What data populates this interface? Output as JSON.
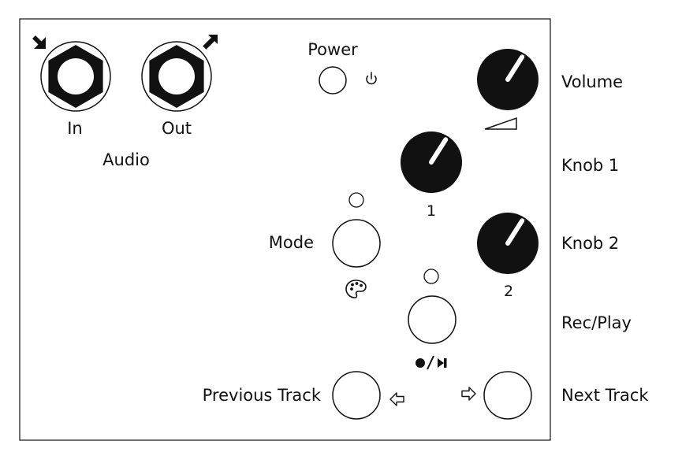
{
  "panel": {
    "audio_label": "Audio",
    "in_label": "In",
    "out_label": "Out",
    "power_label": "Power",
    "mode_label": "Mode",
    "knob1_number": "1",
    "knob2_number": "2"
  },
  "side_labels": {
    "volume": "Volume",
    "knob1": "Knob 1",
    "knob2": "Knob 2",
    "rec_play": "Rec/Play",
    "previous_track": "Previous Track",
    "next_track": "Next Track"
  },
  "icons": {
    "power": "power-icon",
    "volume": "volume-ramp-icon",
    "mode": "palette-icon",
    "rec_play": "record-play-icon",
    "previous": "left-arrow-icon",
    "next": "right-arrow-icon",
    "in_arrow": "arrow-in-icon",
    "out_arrow": "arrow-out-icon"
  },
  "knob_levels": {
    "volume": 0.62,
    "knob1": 0.62,
    "knob2": 0.62
  },
  "colors": {
    "ink": "#111111",
    "background": "#ffffff"
  }
}
